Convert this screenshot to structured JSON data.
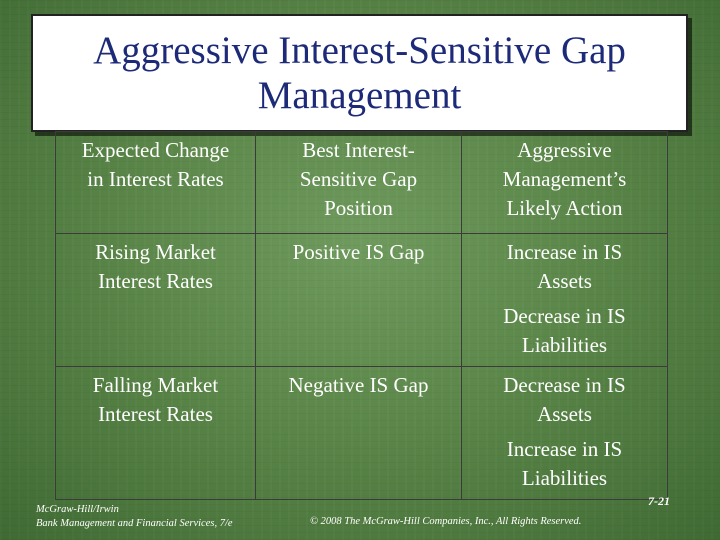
{
  "slide": {
    "title_lines": [
      "Aggressive Interest-Sensitive Gap",
      "Management"
    ]
  },
  "table": {
    "headers": [
      [
        "Expected Change",
        "in Interest Rates"
      ],
      [
        "Best Interest-",
        "Sensitive Gap",
        "Position"
      ],
      [
        "Aggressive",
        "Management’s",
        "Likely Action"
      ]
    ],
    "rows": [
      {
        "expected": [
          "Rising Market",
          "Interest Rates"
        ],
        "position": "Positive IS Gap",
        "actions": [
          [
            "Increase in IS",
            "Assets"
          ],
          [
            "Decrease in IS",
            "Liabilities"
          ]
        ]
      },
      {
        "expected": [
          "Falling Market",
          "Interest Rates"
        ],
        "position": "Negative IS Gap",
        "actions": [
          [
            "Decrease in IS",
            "Assets"
          ],
          [
            "Increase in IS",
            "Liabilities"
          ]
        ]
      }
    ]
  },
  "footer": {
    "publisher": "McGraw-Hill/Irwin",
    "book": "Bank Management and Financial Services, 7/e",
    "copyright": "© 2008 The McGraw-Hill Companies, Inc., All Rights Reserved.",
    "page": "7-21"
  },
  "colors": {
    "title_text": "#1c2a78",
    "body_text": "#ffffff",
    "background": "#5b8649"
  }
}
